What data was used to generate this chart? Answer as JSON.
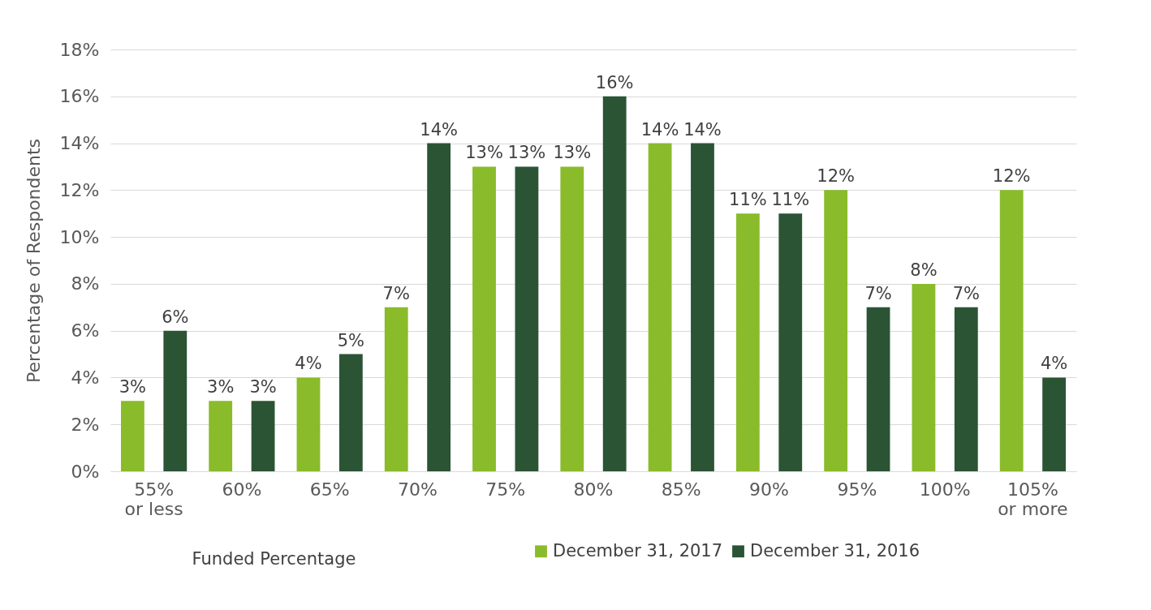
{
  "chart_data": {
    "type": "bar",
    "xlabel": "Funded Percentage",
    "ylabel": "Percentage of Respondents",
    "categories": [
      "55%\nor less",
      "60%",
      "65%",
      "70%",
      "75%",
      "80%",
      "85%",
      "90%",
      "95%",
      "100%",
      "105%\nor more"
    ],
    "series": [
      {
        "name": "December 31, 2017",
        "color": "#8abb2a",
        "values": [
          3,
          3,
          4,
          7,
          13,
          13,
          14,
          11,
          12,
          8,
          12
        ],
        "value_labels": [
          "3%",
          "3%",
          "4%",
          "7%",
          "13%",
          "13%",
          "14%",
          "11%",
          "12%",
          "8%",
          "12%"
        ]
      },
      {
        "name": "December 31, 2016",
        "color": "#2b5435",
        "values": [
          6,
          3,
          5,
          14,
          13,
          16,
          14,
          11,
          7,
          7,
          4
        ],
        "value_labels": [
          "6%",
          "3%",
          "5%",
          "14%",
          "13%",
          "16%",
          "14%",
          "11%",
          "7%",
          "7%",
          "4%"
        ]
      }
    ],
    "ylim": [
      0,
      18
    ],
    "yticks": [
      {
        "value": 0,
        "label": "0%"
      },
      {
        "value": 2,
        "label": "2%"
      },
      {
        "value": 4,
        "label": "4%"
      },
      {
        "value": 6,
        "label": "6%"
      },
      {
        "value": 8,
        "label": "8%"
      },
      {
        "value": 10,
        "label": "10%"
      },
      {
        "value": 12,
        "label": "12%"
      },
      {
        "value": 14,
        "label": "14%"
      },
      {
        "value": 16,
        "label": "16%"
      },
      {
        "value": 18,
        "label": "18%"
      }
    ],
    "grid": "y",
    "legend": "bottom right"
  }
}
